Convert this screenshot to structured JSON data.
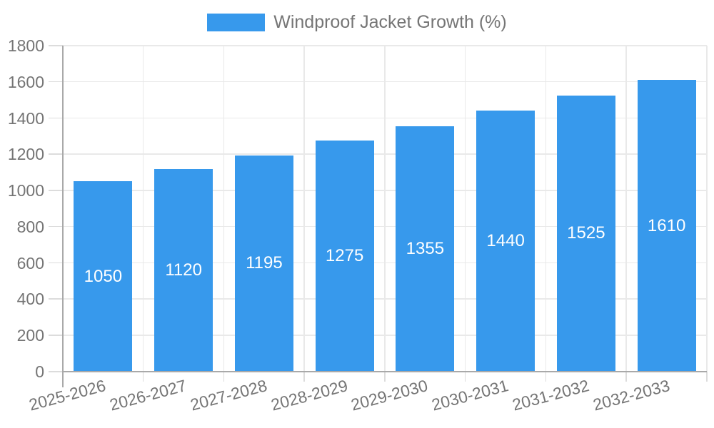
{
  "chart_data": {
    "type": "bar",
    "title": "Windproof Jacket Growth (%)",
    "categories": [
      "2025-2026",
      "2026-2027",
      "2027-2028",
      "2028-2029",
      "2029-2030",
      "2030-2031",
      "2031-2032",
      "2032-2033"
    ],
    "values": [
      1050,
      1120,
      1195,
      1275,
      1355,
      1440,
      1525,
      1610
    ],
    "xlabel": "",
    "ylabel": "",
    "ylim": [
      0,
      1800
    ],
    "ytick_step": 200,
    "ytick_labels": [
      "0",
      "200",
      "400",
      "600",
      "800",
      "1000",
      "1200",
      "1400",
      "1600",
      "1800"
    ],
    "grid": true,
    "legend_position": "top",
    "value_labels_inside_bars": true,
    "colors": {
      "bar": "#3799ec",
      "bar_value_label": "#ffffff",
      "axis_text": "#757575",
      "grid_line": "#e9e9e9",
      "tick_line": "#dcdcdc",
      "axis_line": "#a9a9a9",
      "background": "#ffffff"
    }
  }
}
